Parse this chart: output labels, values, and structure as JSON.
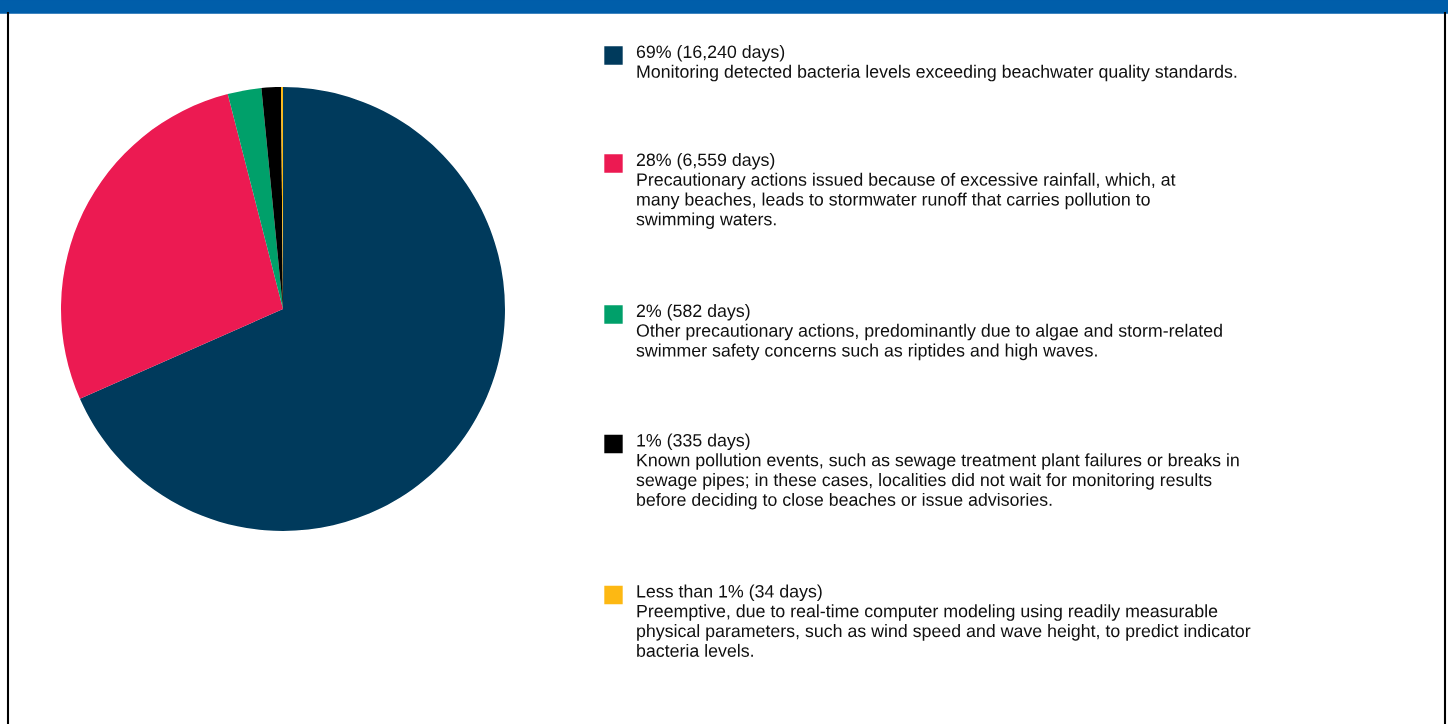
{
  "chart_data": {
    "type": "pie",
    "categories": [
      "69% (16,240 days)\nMonitoring detected bacteria levels exceeding beachwater quality standards.",
      "28% (6,559 days)\nPrecautionary actions issued because of excessive rainfall, which, at\nmany beaches, leads to stormwater runoff that carries pollution to\nswimming waters.",
      "2% (582 days)\nOther precautionary actions, predominantly due to algae and storm-related\nswimmer safety concerns such as riptides and high waves.",
      "1% (335 days)\nKnown pollution events, such as sewage treatment plant failures or breaks in\nsewage pipes; in these cases, localities did not wait for monitoring results\nbefore deciding to close beaches or issue advisories.",
      "Less than 1% (34 days)\nPreemptive, due to real-time computer modeling using readily measurable\nphysical parameters, such as wind speed and wave height, to predict indicator\nbacteria levels."
    ],
    "values": [
      16240,
      6559,
      582,
      335,
      34
    ],
    "colors": [
      "#003a5c",
      "#ec1a52",
      "#00a06a",
      "#000000",
      "#fdb813"
    ],
    "legend": "right"
  }
}
